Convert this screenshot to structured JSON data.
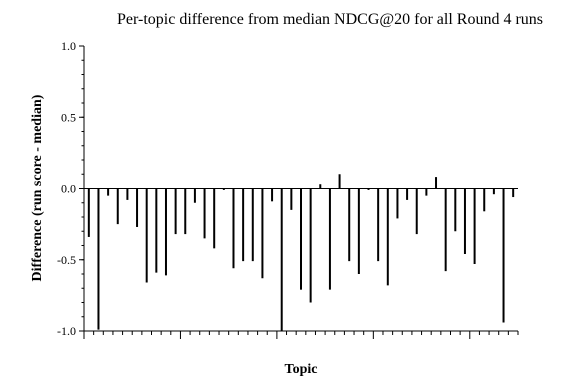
{
  "chart_data": {
    "type": "bar",
    "title": "Per-topic difference from median NDCG@20 for all Round 4 runs",
    "xlabel": "Topic",
    "ylabel": "Difference (run score - median)",
    "ylim": [
      -1.0,
      1.0
    ],
    "y_ticks": [
      "1.0",
      "0.5",
      "0.0",
      "-0.5",
      "-1.0"
    ],
    "y_tick_values": [
      1.0,
      0.5,
      0.0,
      -0.5,
      -1.0
    ],
    "grid": false,
    "topics": 45,
    "values": [
      -0.34,
      -0.99,
      -0.05,
      -0.25,
      -0.08,
      -0.27,
      -0.66,
      -0.59,
      -0.61,
      -0.32,
      -0.32,
      -0.1,
      -0.35,
      -0.42,
      -0.01,
      -0.56,
      -0.51,
      -0.51,
      -0.63,
      -0.09,
      -1.0,
      -0.15,
      -0.71,
      -0.8,
      0.03,
      -0.71,
      0.1,
      -0.51,
      -0.6,
      -0.01,
      -0.51,
      -0.68,
      -0.21,
      -0.08,
      -0.32,
      -0.05,
      0.08,
      -0.58,
      -0.3,
      -0.46,
      -0.53,
      -0.16,
      -0.04,
      -0.94,
      -0.06
    ]
  }
}
